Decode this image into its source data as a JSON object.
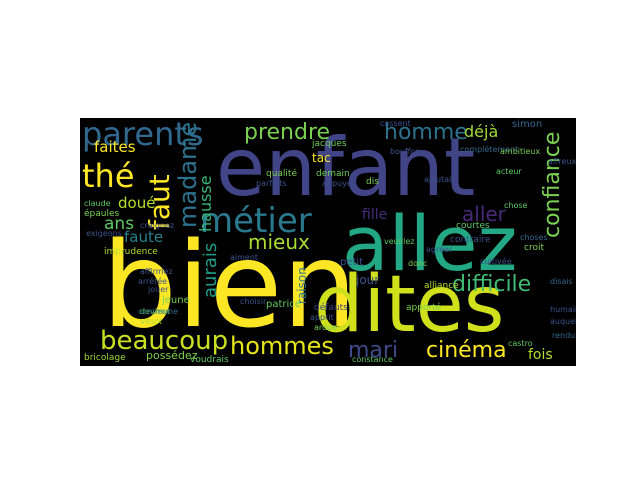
{
  "word_cloud": {
    "background": "#000000",
    "colors": {
      "yellow": "#fde725",
      "lime": "#c5e021",
      "green": "#5ec962",
      "teal": "#21918c",
      "cyan": "#1fa187",
      "blue": "#3b528b",
      "slate": "#31688e",
      "purple": "#472d7b",
      "dark": "#440154"
    },
    "words": [
      {
        "text": "enfant",
        "color": "#414487"
      },
      {
        "text": "bien",
        "color": "#fde725"
      },
      {
        "text": "allez",
        "color": "#22a884"
      },
      {
        "text": "dites",
        "color": "#d0e11c"
      },
      {
        "text": "métier",
        "color": "#2a788e"
      },
      {
        "text": "parents",
        "color": "#31688e"
      },
      {
        "text": "beaucoup",
        "color": "#c8e020"
      },
      {
        "text": "hommes",
        "color": "#e5e419"
      },
      {
        "text": "prendre",
        "color": "#7ad151"
      },
      {
        "text": "homme",
        "color": "#2c728e"
      },
      {
        "text": "thé",
        "color": "#fde725"
      },
      {
        "text": "faut",
        "color": "#fde725"
      },
      {
        "text": "madame",
        "color": "#2c728e"
      },
      {
        "text": "confiance",
        "color": "#7ad151"
      },
      {
        "text": "difficile",
        "color": "#3fbc73"
      },
      {
        "text": "cinéma",
        "color": "#fde725"
      },
      {
        "text": "mari",
        "color": "#3e4a89"
      },
      {
        "text": "mieux",
        "color": "#a8db34"
      },
      {
        "text": "aller",
        "color": "#482878"
      },
      {
        "text": "fille",
        "color": "#472d7b"
      },
      {
        "text": "déjà",
        "color": "#a2da37"
      },
      {
        "text": "faites",
        "color": "#fde725"
      },
      {
        "text": "hausse",
        "color": "#35b779"
      },
      {
        "text": "aurais",
        "color": "#1f9e89"
      },
      {
        "text": "ans",
        "color": "#5ec962"
      },
      {
        "text": "doué",
        "color": "#b5de2b"
      },
      {
        "text": "faute",
        "color": "#26828e"
      },
      {
        "text": "fois",
        "color": "#b5de2b"
      },
      {
        "text": "jour",
        "color": "#3b528b"
      },
      {
        "text": "raison",
        "color": "#2a788e"
      },
      {
        "text": "tac",
        "color": "#fde725"
      },
      {
        "text": "jacques",
        "color": "#6ece58"
      },
      {
        "text": "qualité",
        "color": "#7ad151"
      },
      {
        "text": "patrice",
        "color": "#5ec962"
      },
      {
        "text": "petit",
        "color": "#3b528b"
      },
      {
        "text": "défauts",
        "color": "#414487"
      },
      {
        "text": "possédez",
        "color": "#7ad151"
      },
      {
        "text": "bricolage",
        "color": "#9fda3a"
      },
      {
        "text": "voudrais",
        "color": "#5ec962"
      },
      {
        "text": "imprudence",
        "color": "#b5de2b"
      },
      {
        "text": "jeune",
        "color": "#7ad151"
      },
      {
        "text": "veux",
        "color": "#a8db34"
      },
      {
        "text": "apporté",
        "color": "#7ad151"
      },
      {
        "text": "alliance",
        "color": "#b5de2b"
      },
      {
        "text": "croit",
        "color": "#7ad151"
      },
      {
        "text": "courtes",
        "color": "#5ec962"
      },
      {
        "text": "contraire",
        "color": "#3b528b"
      },
      {
        "text": "simon",
        "color": "#31688e"
      },
      {
        "text": "chose",
        "color": "#5ec962"
      },
      {
        "text": "dis",
        "color": "#7ad151"
      },
      {
        "text": "demain",
        "color": "#6ece58"
      },
      {
        "text": "veuillez",
        "color": "#5ec962"
      },
      {
        "text": "cassent",
        "color": "#3b528b"
      },
      {
        "text": "complétement",
        "color": "#31688e"
      },
      {
        "text": "bouffon",
        "color": "#3b528b"
      },
      {
        "text": "affirmez",
        "color": "#3b528b"
      },
      {
        "text": "devient",
        "color": "#5ec962"
      },
      {
        "text": "arrêtée",
        "color": "#3b528b"
      },
      {
        "text": "claude",
        "color": "#5ec962"
      },
      {
        "text": "épaules",
        "color": "#7ad151"
      },
      {
        "text": "craignez",
        "color": "#3b528b"
      },
      {
        "text": "commune",
        "color": "#31688e"
      },
      {
        "text": "acteur",
        "color": "#5ec962"
      },
      {
        "text": "ambitieux",
        "color": "#7ad151"
      },
      {
        "text": "appuyer",
        "color": "#3b528b"
      },
      {
        "text": "ajoutait",
        "color": "#3b528b"
      },
      {
        "text": "castro",
        "color": "#5ec962"
      },
      {
        "text": "agréer",
        "color": "#3b528b"
      },
      {
        "text": "cultivée",
        "color": "#3b528b"
      },
      {
        "text": "disais",
        "color": "#31688e"
      },
      {
        "text": "affreux",
        "color": "#3b528b"
      },
      {
        "text": "constance",
        "color": "#5ec962"
      },
      {
        "text": "choisir",
        "color": "#3b528b"
      },
      {
        "text": "donc",
        "color": "#7ad151"
      },
      {
        "text": "parfaits",
        "color": "#3b528b"
      },
      {
        "text": "ardue",
        "color": "#7ad151"
      },
      {
        "text": "apprit",
        "color": "#3b528b"
      },
      {
        "text": "exigeons",
        "color": "#3b528b"
      },
      {
        "text": "jouer",
        "color": "#3b528b"
      },
      {
        "text": "aiment",
        "color": "#3b528b"
      },
      {
        "text": "choses",
        "color": "#31688e"
      },
      {
        "text": "rendu",
        "color": "#31688e"
      },
      {
        "text": "auquel",
        "color": "#3b528b"
      },
      {
        "text": "humain",
        "color": "#3b528b"
      }
    ]
  }
}
